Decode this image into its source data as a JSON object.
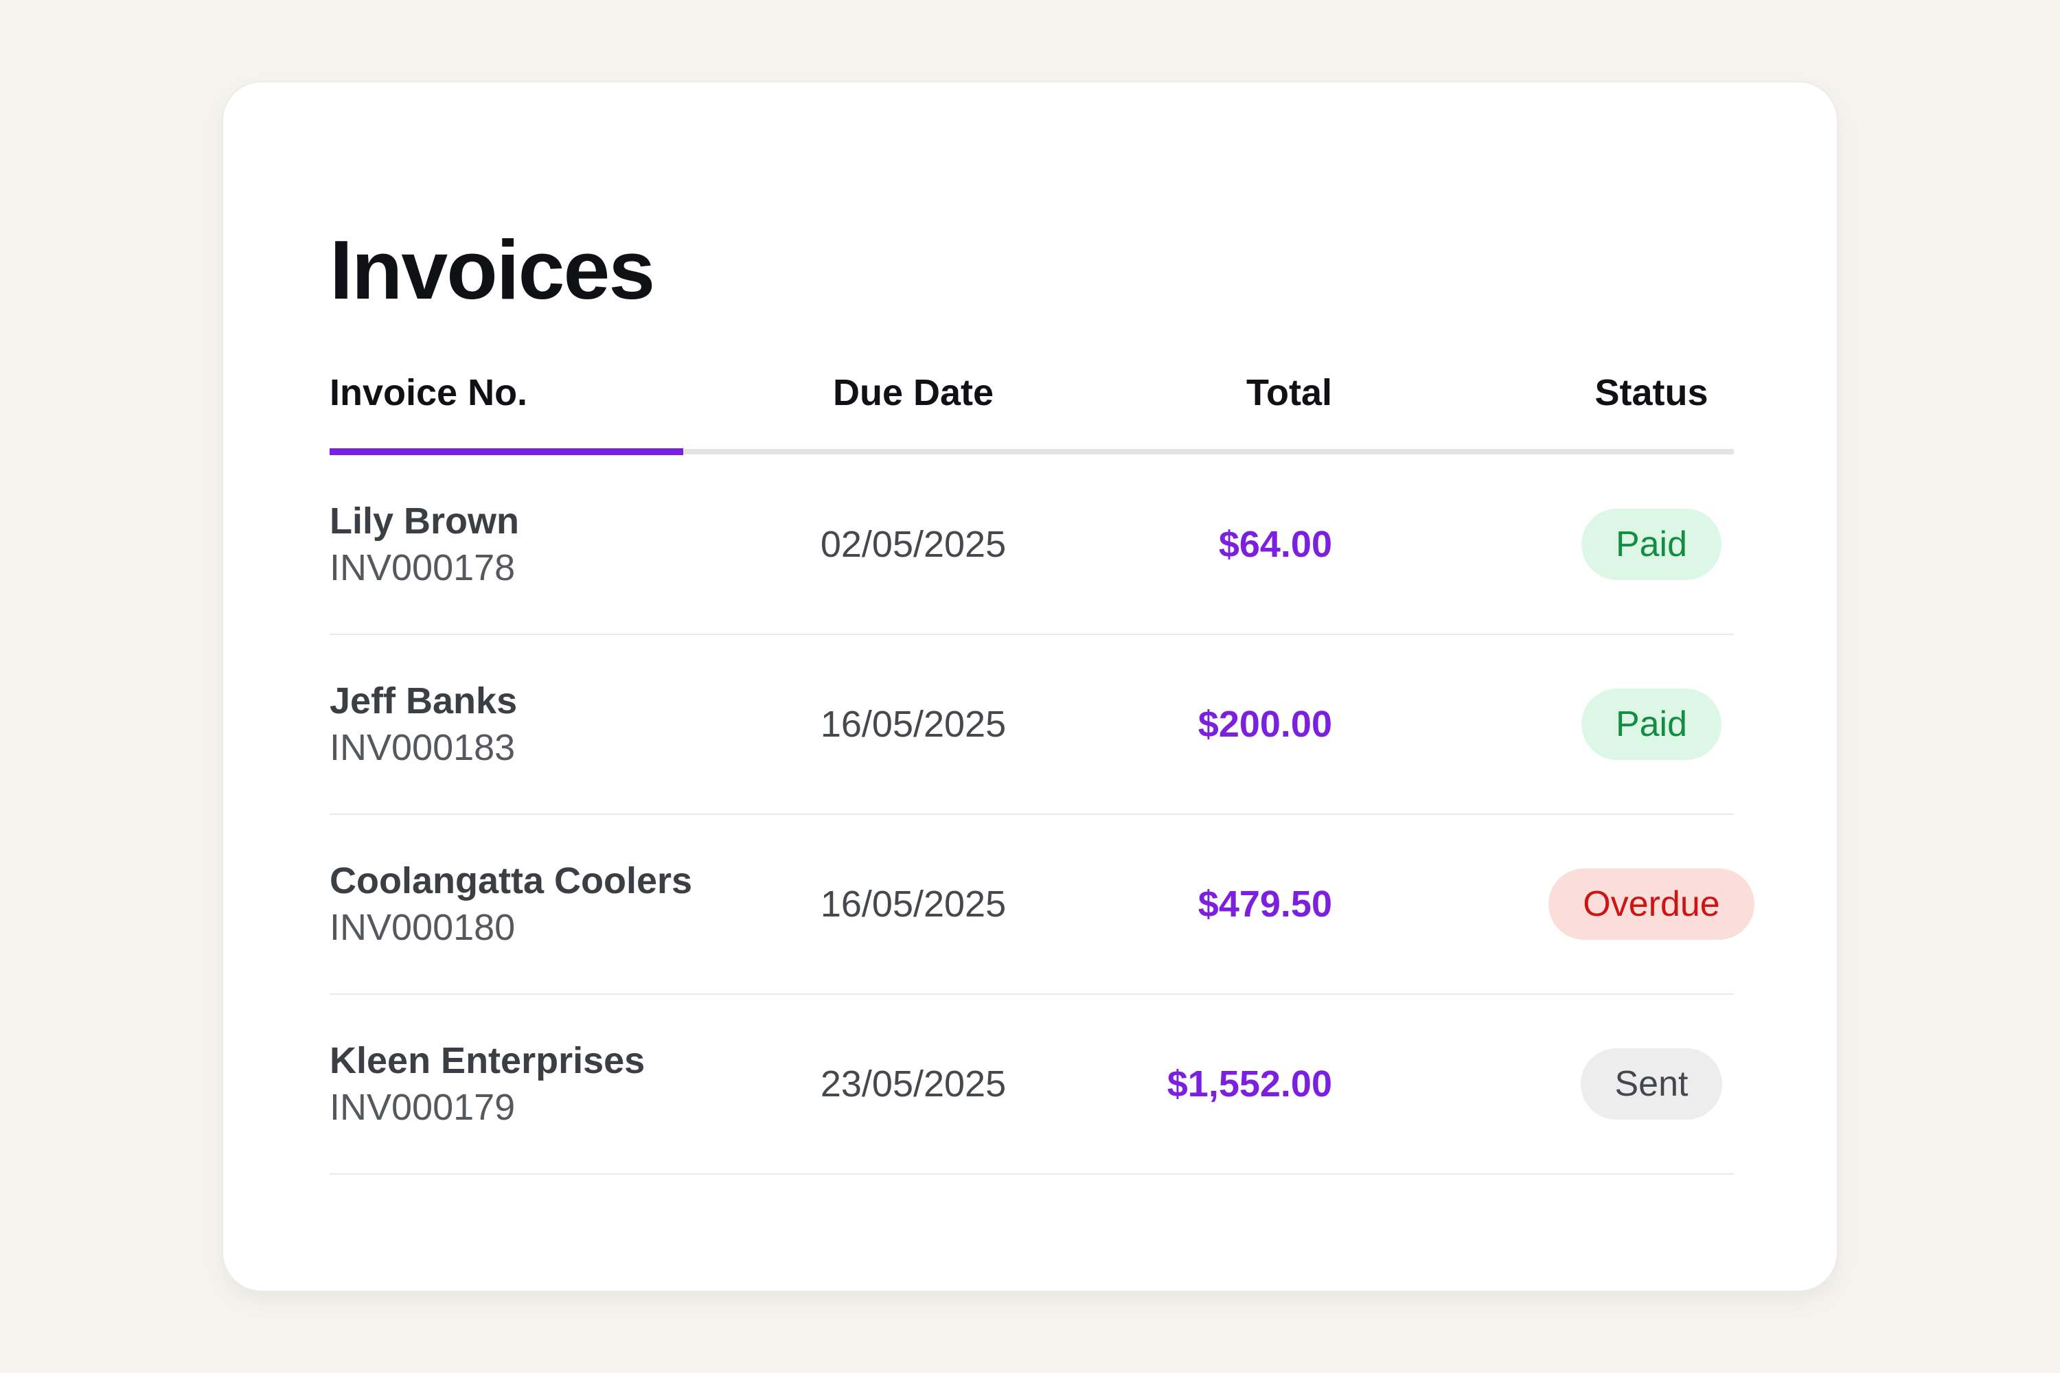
{
  "page": {
    "background_color": "#f5f3ee"
  },
  "card": {
    "title": "Invoices",
    "accent_color": "#7c20e0"
  },
  "table": {
    "headers": {
      "invoice_no": "Invoice No.",
      "due_date": "Due Date",
      "total": "Total",
      "status": "Status"
    },
    "rows": [
      {
        "customer": "Lily Brown",
        "invoice_no": "INV000178",
        "due_date": "02/05/2025",
        "total": "$64.00",
        "status": "Paid",
        "variant": "paid"
      },
      {
        "customer": "Jeff Banks",
        "invoice_no": "INV000183",
        "due_date": "16/05/2025",
        "total": "$200.00",
        "status": "Paid",
        "variant": "paid"
      },
      {
        "customer": "Coolangatta Coolers",
        "invoice_no": "INV000180",
        "due_date": "16/05/2025",
        "total": "$479.50",
        "status": "Overdue",
        "variant": "overdue"
      },
      {
        "customer": "Kleen Enterprises",
        "invoice_no": "INV000179",
        "due_date": "23/05/2025",
        "total": "$1,552.00",
        "status": "Sent",
        "variant": "sent"
      }
    ],
    "status_colors": {
      "paid": {
        "background": "#dcf7e6",
        "text": "#148c43"
      },
      "overdue": {
        "background": "#fbdeda",
        "text": "#cc1414"
      },
      "sent": {
        "background": "#ededee",
        "text": "#44484d"
      }
    }
  }
}
